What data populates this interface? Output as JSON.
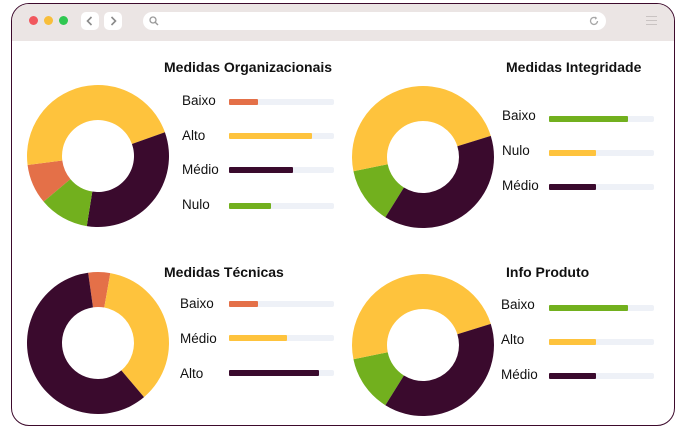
{
  "colors": {
    "orange": "#e47048",
    "yellow": "#fec33d",
    "purple": "#3a0a2d",
    "green": "#72b01e",
    "track": "#eef1f7"
  },
  "browser": {
    "dots": [
      "#f1585e",
      "#f8be3a",
      "#2fc751"
    ],
    "back_icon": "chevron-left-icon",
    "forward_icon": "chevron-right-icon",
    "search_icon": "search-icon",
    "reload_icon": "reload-icon",
    "menu_icon": "hamburger-menu-icon"
  },
  "chart_data": [
    {
      "type": "pie",
      "variant": "donut",
      "title": "Medidas Organizacionais",
      "categories": [
        "Baixo",
        "Alto",
        "Médio",
        "Nulo"
      ],
      "values": [
        8,
        41,
        29,
        10
      ],
      "colors": [
        "#e47048",
        "#fec33d",
        "#3a0a2d",
        "#72b01e"
      ],
      "bars": [
        0.28,
        0.79,
        0.61,
        0.4
      ]
    },
    {
      "type": "pie",
      "variant": "donut",
      "title": "Medidas Integridade",
      "categories": [
        "Baixo",
        "Nulo",
        "Médio"
      ],
      "values": [
        12,
        45,
        36
      ],
      "colors": [
        "#72b01e",
        "#fec33d",
        "#3a0a2d"
      ],
      "bars": [
        0.75,
        0.45,
        0.45
      ]
    },
    {
      "type": "pie",
      "variant": "donut",
      "title": "Medidas Técnicas",
      "categories": [
        "Baixo",
        "Médio",
        "Alto"
      ],
      "values": [
        5,
        36,
        59
      ],
      "colors": [
        "#e47048",
        "#fec33d",
        "#3a0a2d"
      ],
      "bars": [
        0.28,
        0.55,
        0.86
      ]
    },
    {
      "type": "pie",
      "variant": "donut",
      "title": "Info Produto",
      "categories": [
        "Baixo",
        "Alto",
        "Médio"
      ],
      "values": [
        12,
        45,
        36
      ],
      "colors": [
        "#72b01e",
        "#fec33d",
        "#3a0a2d"
      ],
      "bars": [
        0.75,
        0.45,
        0.45
      ]
    }
  ]
}
